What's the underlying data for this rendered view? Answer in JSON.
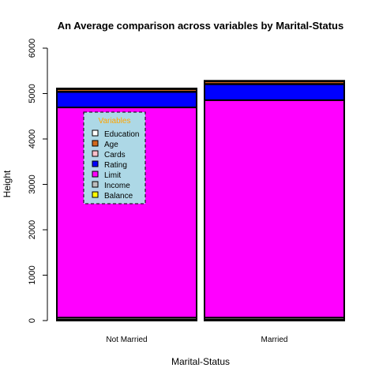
{
  "chart_data": {
    "type": "bar",
    "stacked": true,
    "title": "An Average comparison across variables by Marital-Status",
    "xlabel": "Marital-Status",
    "ylabel": "Height",
    "ylim": [
      0,
      6000
    ],
    "yticks": [
      "0",
      "1000",
      "2000",
      "3000",
      "4000",
      "5000",
      "6000"
    ],
    "categories": [
      "Not Married",
      "Married"
    ],
    "series": [
      {
        "name": "Balance",
        "color": "#FFFF00",
        "values": [
          20,
          20
        ]
      },
      {
        "name": "Income",
        "color": "#BEBEBE",
        "values": [
          45,
          45
        ]
      },
      {
        "name": "Limit",
        "color": "#FF00FF",
        "values": [
          4630,
          4790
        ]
      },
      {
        "name": "Rating",
        "color": "#0000FF",
        "values": [
          345,
          355
        ]
      },
      {
        "name": "Cards",
        "color": "#FFC0CB",
        "values": [
          3,
          3
        ]
      },
      {
        "name": "Age",
        "color": "#D2691E",
        "values": [
          56,
          56
        ]
      },
      {
        "name": "Education",
        "color": "#FFFFFF",
        "values": [
          13,
          13
        ]
      }
    ],
    "legend": {
      "title": "Variables",
      "position": "top-left",
      "background": "#ADD8E6",
      "entries": [
        "Education",
        "Age",
        "Cards",
        "Rating",
        "Limit",
        "Income",
        "Balance"
      ]
    }
  }
}
